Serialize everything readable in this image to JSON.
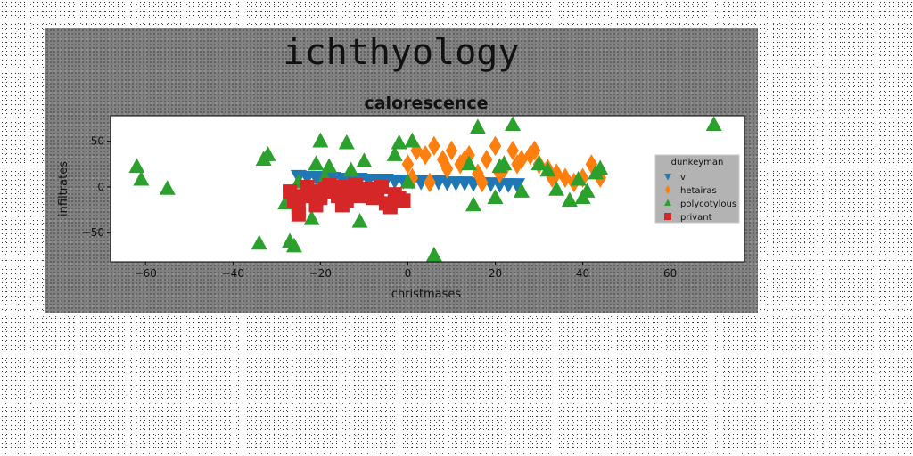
{
  "chart_data": {
    "type": "scatter",
    "suptitle": "ichthyology",
    "title": "calorescence",
    "xlabel": "christmases",
    "ylabel": "infiltrates",
    "xlim": [
      -68,
      77
    ],
    "ylim": [
      -82,
      78
    ],
    "xticks": [
      -60,
      -40,
      -20,
      0,
      20,
      40,
      60
    ],
    "yticks": [
      -50,
      0,
      50
    ],
    "xtick_labels": [
      "−60",
      "−40",
      "−20",
      "0",
      "20",
      "40",
      "60"
    ],
    "ytick_labels": [
      "−50",
      "0",
      "50"
    ],
    "grid": false,
    "legend": {
      "title": "dunkeyman",
      "placement": "right"
    },
    "series": [
      {
        "name": "v",
        "marker": "triangle-down",
        "color": "#1f77b4",
        "x": [
          -25,
          -23,
          -21,
          -19,
          -17,
          -15,
          -13,
          -11,
          -9,
          -7,
          -5,
          -3,
          -1,
          1,
          3,
          5,
          7,
          9,
          11,
          13,
          15,
          17,
          19,
          21,
          23,
          25
        ],
        "y": [
          12,
          11,
          11,
          10,
          10,
          9,
          9,
          9,
          8,
          8,
          8,
          7,
          7,
          7,
          6,
          6,
          6,
          5,
          5,
          5,
          4,
          4,
          4,
          3,
          3,
          3
        ]
      },
      {
        "name": "hetairas",
        "marker": "diamond",
        "color": "#ff7f0e",
        "x": [
          0,
          2,
          4,
          6,
          8,
          10,
          12,
          14,
          16,
          18,
          20,
          22,
          24,
          26,
          28,
          30,
          32,
          34,
          36,
          38,
          40,
          42,
          44,
          1,
          5,
          9,
          13,
          17,
          21,
          25,
          29,
          33
        ],
        "y": [
          25,
          40,
          35,
          45,
          30,
          40,
          25,
          35,
          15,
          30,
          45,
          20,
          40,
          30,
          35,
          25,
          20,
          15,
          10,
          5,
          10,
          25,
          10,
          10,
          5,
          20,
          30,
          5,
          15,
          25,
          40,
          10
        ]
      },
      {
        "name": "polycotylous",
        "marker": "triangle-up",
        "color": "#2ca02c",
        "x": [
          -62,
          -61,
          -55,
          -33,
          -32,
          -34,
          -28,
          -27,
          -26,
          -25,
          -22,
          -21,
          -20,
          -19,
          -18,
          -14,
          -13,
          -11,
          -10,
          -3,
          -2,
          0,
          1,
          6,
          14,
          15,
          16,
          20,
          21,
          22,
          24,
          26,
          30,
          32,
          34,
          37,
          39,
          40,
          41,
          43,
          44,
          70
        ],
        "y": [
          22,
          8,
          -2,
          30,
          35,
          -62,
          -18,
          -60,
          -65,
          5,
          -35,
          25,
          50,
          10,
          22,
          48,
          18,
          -38,
          28,
          35,
          48,
          5,
          50,
          -75,
          25,
          -20,
          65,
          -12,
          22,
          25,
          68,
          -5,
          25,
          18,
          -3,
          -15,
          8,
          -12,
          -5,
          15,
          20,
          68
        ]
      },
      {
        "name": "privant",
        "marker": "square",
        "color": "#d62728",
        "x": [
          -27,
          -26,
          -25,
          -24,
          -23,
          -22,
          -21,
          -20,
          -19,
          -18,
          -17,
          -16,
          -15,
          -14,
          -13,
          -12,
          -11,
          -10,
          -9,
          -8,
          -7,
          -6,
          -5,
          -4,
          -3,
          -2,
          -1,
          -25,
          -20,
          -15
        ],
        "y": [
          -5,
          -15,
          -25,
          -10,
          0,
          -5,
          -20,
          -8,
          -2,
          2,
          -5,
          -10,
          0,
          -15,
          -5,
          2,
          -10,
          -5,
          -2,
          -12,
          -8,
          0,
          -18,
          -22,
          -8,
          -12,
          -15,
          -30,
          -12,
          -20
        ]
      }
    ]
  }
}
